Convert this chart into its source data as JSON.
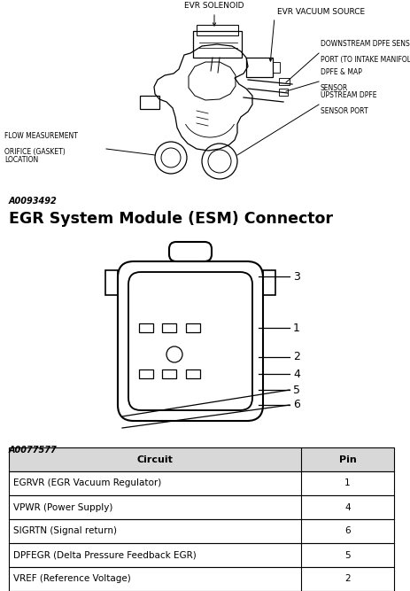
{
  "fig_width": 4.64,
  "fig_height": 6.67,
  "dpi": 100,
  "bg_color": "#ffffff",
  "code1": "A0093492",
  "section_title": "EGR System Module (ESM) Connector",
  "code2": "A0077577",
  "table_headers": [
    "Circuit",
    "Pin"
  ],
  "table_rows": [
    [
      "EGRVR (EGR Vacuum Regulator)",
      "1"
    ],
    [
      "VPWR (Power Supply)",
      "4"
    ],
    [
      "SIGRTN (Signal return)",
      "6"
    ],
    [
      "DPFEGR (Delta Pressure Feedback EGR)",
      "5"
    ],
    [
      "VREF (Reference Voltage)",
      "2"
    ]
  ]
}
